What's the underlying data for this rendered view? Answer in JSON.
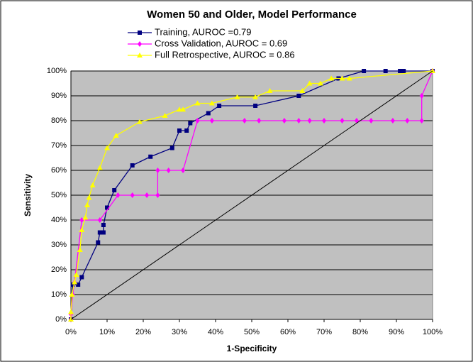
{
  "chart_data": {
    "type": "line",
    "title": "Women 50 and Older, Model Performance",
    "xlabel": "1-Specificity",
    "ylabel": "Sensitivity",
    "xlim": [
      0,
      100
    ],
    "ylim": [
      0,
      100
    ],
    "xticks": [
      {
        "value": 0,
        "label": "0%"
      },
      {
        "value": 10,
        "label": "10%"
      },
      {
        "value": 20,
        "label": "20%"
      },
      {
        "value": 30,
        "label": "30%"
      },
      {
        "value": 40,
        "label": "40%"
      },
      {
        "value": 50,
        "label": "50%"
      },
      {
        "value": 60,
        "label": "60%"
      },
      {
        "value": 70,
        "label": "70%"
      },
      {
        "value": 80,
        "label": "80%"
      },
      {
        "value": 90,
        "label": "90%"
      },
      {
        "value": 100,
        "label": "100%"
      }
    ],
    "yticks": [
      {
        "value": 0,
        "label": "0%"
      },
      {
        "value": 10,
        "label": "10%"
      },
      {
        "value": 20,
        "label": "20%"
      },
      {
        "value": 30,
        "label": "30%"
      },
      {
        "value": 40,
        "label": "40%"
      },
      {
        "value": 50,
        "label": "50%"
      },
      {
        "value": 60,
        "label": "60%"
      },
      {
        "value": 70,
        "label": "70%"
      },
      {
        "value": 80,
        "label": "80%"
      },
      {
        "value": 90,
        "label": "90%"
      },
      {
        "value": 100,
        "label": "100%"
      }
    ],
    "grid": true,
    "series": [
      {
        "name": "Training, AUROC =0.79",
        "color": "#000080",
        "marker": "square",
        "x": [
          0,
          0.5,
          2,
          3,
          7.5,
          8,
          9,
          9,
          10,
          12,
          17,
          22,
          28,
          30,
          32,
          33,
          38,
          41,
          51,
          63,
          74,
          81,
          87,
          91,
          92,
          100
        ],
        "values": [
          0,
          14,
          14,
          17,
          31,
          35,
          35,
          38,
          45,
          52,
          62,
          65.5,
          69,
          76,
          76,
          79,
          83,
          86,
          86,
          90,
          97,
          100,
          100,
          100,
          100,
          100
        ]
      },
      {
        "name": "Cross Validation, AUROC = 0.69",
        "color": "#ff00ff",
        "marker": "diamond",
        "x": [
          0,
          0,
          0.5,
          1,
          3,
          8,
          13,
          17,
          21,
          24,
          24,
          27,
          31,
          35,
          39,
          48,
          52,
          59,
          63,
          66,
          70,
          75,
          79,
          83,
          89,
          93,
          97,
          97,
          100
        ],
        "values": [
          0,
          2,
          10,
          15,
          40,
          40,
          50,
          50,
          50,
          50,
          60,
          60,
          60,
          80,
          80,
          80,
          80,
          80,
          80,
          80,
          80,
          80,
          80,
          80,
          80,
          80,
          80,
          90,
          100
        ]
      },
      {
        "name": "Full Retrospective, AUROC = 0.86",
        "color": "#ffff00",
        "marker": "triangle",
        "x": [
          0,
          0,
          0.3,
          1,
          1.5,
          2.5,
          3,
          4,
          4.5,
          5,
          6,
          8,
          10,
          12.5,
          19,
          26,
          30,
          31,
          35,
          39,
          46,
          51,
          55,
          64,
          66,
          69,
          72,
          75,
          77,
          100
        ],
        "values": [
          0,
          3,
          10,
          15,
          18,
          28,
          36,
          41,
          46,
          49,
          54,
          61,
          69,
          74,
          79.5,
          82,
          84.5,
          84.5,
          87,
          87,
          89.5,
          89.5,
          92,
          92,
          95,
          95,
          97,
          97,
          97,
          100
        ]
      },
      {
        "color": "#000000",
        "x": [
          0,
          100
        ],
        "values": [
          0,
          100
        ]
      }
    ]
  }
}
